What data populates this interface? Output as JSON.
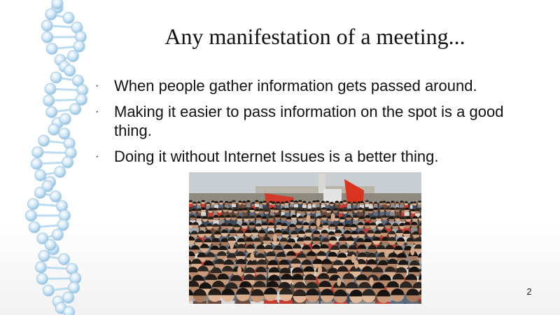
{
  "slide": {
    "title": "Any manifestation of a meeting...",
    "bullets": [
      "When people gather information gets passed around.",
      "Making it easier to pass information on the spot is a good thing.",
      "Doing it without Internet Issues is a better thing."
    ],
    "bullet_marker": "·",
    "page_number": "2",
    "decoration": "dna-helix-graphic",
    "image": "crowd-protest-photo"
  }
}
